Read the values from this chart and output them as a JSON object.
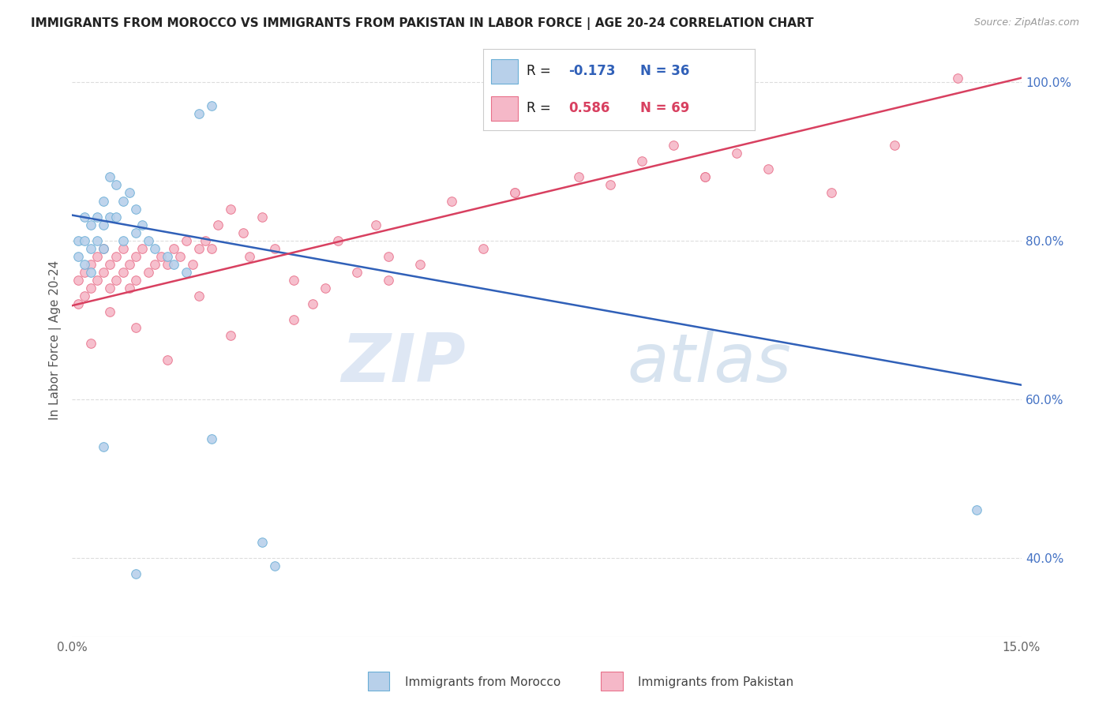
{
  "title": "IMMIGRANTS FROM MOROCCO VS IMMIGRANTS FROM PAKISTAN IN LABOR FORCE | AGE 20-24 CORRELATION CHART",
  "source_text": "Source: ZipAtlas.com",
  "ylabel": "In Labor Force | Age 20-24",
  "xlim": [
    0.0,
    0.15
  ],
  "ylim": [
    0.3,
    1.05
  ],
  "xticks": [
    0.0,
    0.03,
    0.06,
    0.09,
    0.12,
    0.15
  ],
  "xticklabels": [
    "0.0%",
    "",
    "",
    "",
    "",
    "15.0%"
  ],
  "yticks": [
    0.4,
    0.6,
    0.8,
    1.0
  ],
  "right_yticklabels": [
    "40.0%",
    "60.0%",
    "80.0%",
    "100.0%"
  ],
  "morocco_color": "#b8d0ea",
  "pakistan_color": "#f5b8c8",
  "morocco_edge_color": "#6aaed6",
  "pakistan_edge_color": "#e8708a",
  "trend_morocco_color": "#3060b8",
  "trend_pakistan_color": "#d84060",
  "legend_R_morocco": "-0.173",
  "legend_N_morocco": "36",
  "legend_R_pakistan": "0.586",
  "legend_N_pakistan": "69",
  "watermark_zip": "ZIP",
  "watermark_atlas": "atlas",
  "background_color": "#ffffff",
  "grid_color": "#dddddd",
  "marker_size": 70,
  "morocco_trend_x0": 0.0,
  "morocco_trend_y0": 0.832,
  "morocco_trend_x1": 0.15,
  "morocco_trend_y1": 0.618,
  "pakistan_trend_x0": 0.0,
  "pakistan_trend_y0": 0.718,
  "pakistan_trend_x1": 0.15,
  "pakistan_trend_y1": 1.005,
  "morocco_x": [
    0.001,
    0.001,
    0.002,
    0.002,
    0.002,
    0.003,
    0.003,
    0.003,
    0.004,
    0.004,
    0.005,
    0.005,
    0.005,
    0.006,
    0.006,
    0.007,
    0.007,
    0.008,
    0.008,
    0.009,
    0.01,
    0.01,
    0.011,
    0.012,
    0.013,
    0.015,
    0.016,
    0.018,
    0.02,
    0.022,
    0.022,
    0.03,
    0.032,
    0.143,
    0.005,
    0.01
  ],
  "morocco_y": [
    0.8,
    0.78,
    0.83,
    0.8,
    0.77,
    0.82,
    0.79,
    0.76,
    0.83,
    0.8,
    0.85,
    0.82,
    0.79,
    0.88,
    0.83,
    0.87,
    0.83,
    0.85,
    0.8,
    0.86,
    0.84,
    0.81,
    0.82,
    0.8,
    0.79,
    0.78,
    0.77,
    0.76,
    0.96,
    0.97,
    0.55,
    0.42,
    0.39,
    0.46,
    0.54,
    0.38
  ],
  "pakistan_x": [
    0.001,
    0.001,
    0.002,
    0.002,
    0.003,
    0.003,
    0.004,
    0.004,
    0.005,
    0.005,
    0.006,
    0.006,
    0.007,
    0.007,
    0.008,
    0.008,
    0.009,
    0.009,
    0.01,
    0.01,
    0.011,
    0.012,
    0.013,
    0.014,
    0.015,
    0.016,
    0.017,
    0.018,
    0.019,
    0.02,
    0.021,
    0.022,
    0.023,
    0.025,
    0.027,
    0.028,
    0.03,
    0.032,
    0.035,
    0.038,
    0.04,
    0.042,
    0.045,
    0.048,
    0.05,
    0.055,
    0.06,
    0.065,
    0.07,
    0.08,
    0.085,
    0.09,
    0.095,
    0.1,
    0.105,
    0.11,
    0.12,
    0.13,
    0.14,
    0.003,
    0.006,
    0.01,
    0.015,
    0.02,
    0.025,
    0.035,
    0.05,
    0.07,
    0.1
  ],
  "pakistan_y": [
    0.75,
    0.72,
    0.76,
    0.73,
    0.77,
    0.74,
    0.78,
    0.75,
    0.79,
    0.76,
    0.77,
    0.74,
    0.78,
    0.75,
    0.79,
    0.76,
    0.77,
    0.74,
    0.78,
    0.75,
    0.79,
    0.76,
    0.77,
    0.78,
    0.77,
    0.79,
    0.78,
    0.8,
    0.77,
    0.79,
    0.8,
    0.79,
    0.82,
    0.84,
    0.81,
    0.78,
    0.83,
    0.79,
    0.75,
    0.72,
    0.74,
    0.8,
    0.76,
    0.82,
    0.78,
    0.77,
    0.85,
    0.79,
    0.86,
    0.88,
    0.87,
    0.9,
    0.92,
    0.88,
    0.91,
    0.89,
    0.86,
    0.92,
    1.005,
    0.67,
    0.71,
    0.69,
    0.65,
    0.73,
    0.68,
    0.7,
    0.75,
    0.86,
    0.88
  ]
}
